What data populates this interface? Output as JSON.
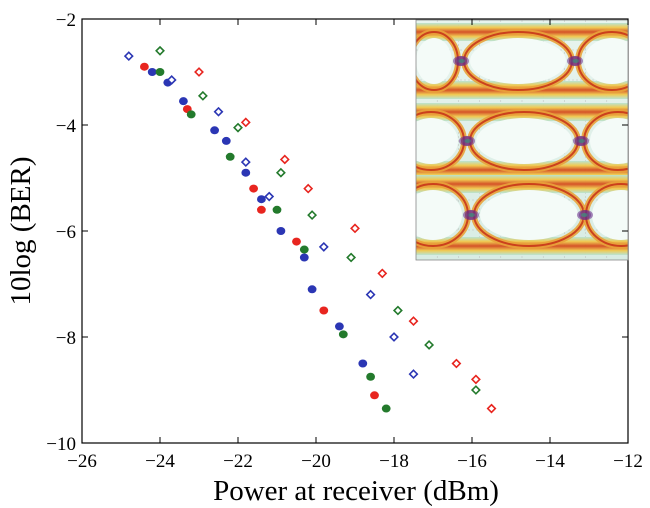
{
  "chart_data": {
    "type": "scatter",
    "xlabel": "Power at receiver (dBm)",
    "ylabel": "10log (BER)",
    "xlim": [
      -26,
      -12
    ],
    "ylim": [
      -10,
      -2
    ],
    "xticks": [
      -26,
      -24,
      -22,
      -20,
      -18,
      -16,
      -14,
      -12
    ],
    "xtick_labels": [
      "−26",
      "−24",
      "−22",
      "−20",
      "−18",
      "−16",
      "−14",
      "−12"
    ],
    "yticks": [
      -10,
      -8,
      -6,
      -4,
      -2
    ],
    "ytick_labels": [
      "−10",
      "−8",
      "−6",
      "−4",
      "−2"
    ],
    "grid": false,
    "inset": "eye diagrams (three stacked)",
    "colors": {
      "red": "#e8251f",
      "blue": "#2b36b4",
      "green": "#237a2c"
    },
    "series": [
      {
        "marker": "filled-circle",
        "color": "#e8251f",
        "points": [
          [
            -24.4,
            -2.9
          ],
          [
            -23.3,
            -3.7
          ],
          [
            -21.6,
            -5.2
          ],
          [
            -21.4,
            -5.6
          ],
          [
            -20.5,
            -6.2
          ],
          [
            -19.8,
            -7.5
          ],
          [
            -18.5,
            -9.1
          ]
        ]
      },
      {
        "marker": "filled-circle",
        "color": "#2b36b4",
        "points": [
          [
            -24.2,
            -3.0
          ],
          [
            -23.8,
            -3.2
          ],
          [
            -23.4,
            -3.55
          ],
          [
            -22.6,
            -4.1
          ],
          [
            -22.3,
            -4.3
          ],
          [
            -21.8,
            -4.9
          ],
          [
            -21.4,
            -5.4
          ],
          [
            -20.9,
            -6.0
          ],
          [
            -20.3,
            -6.5
          ],
          [
            -20.1,
            -7.1
          ],
          [
            -19.4,
            -7.8
          ],
          [
            -18.8,
            -8.5
          ]
        ]
      },
      {
        "marker": "filled-circle",
        "color": "#237a2c",
        "points": [
          [
            -24.0,
            -3.0
          ],
          [
            -23.2,
            -3.8
          ],
          [
            -22.2,
            -4.6
          ],
          [
            -21.0,
            -5.6
          ],
          [
            -20.3,
            -6.35
          ],
          [
            -19.3,
            -7.95
          ],
          [
            -18.6,
            -8.75
          ],
          [
            -18.2,
            -9.35
          ]
        ]
      },
      {
        "marker": "open-diamond",
        "color": "#e8251f",
        "points": [
          [
            -23.0,
            -3.0
          ],
          [
            -21.8,
            -3.95
          ],
          [
            -20.8,
            -4.65
          ],
          [
            -20.2,
            -5.2
          ],
          [
            -19.0,
            -5.95
          ],
          [
            -18.3,
            -6.8
          ],
          [
            -17.5,
            -7.7
          ],
          [
            -16.4,
            -8.5
          ],
          [
            -15.9,
            -8.8
          ],
          [
            -15.5,
            -9.35
          ]
        ]
      },
      {
        "marker": "open-diamond",
        "color": "#2b36b4",
        "points": [
          [
            -24.8,
            -2.7
          ],
          [
            -23.7,
            -3.15
          ],
          [
            -22.5,
            -3.75
          ],
          [
            -21.8,
            -4.7
          ],
          [
            -21.2,
            -5.35
          ],
          [
            -19.8,
            -6.3
          ],
          [
            -18.6,
            -7.2
          ],
          [
            -18.0,
            -8.0
          ],
          [
            -17.5,
            -8.7
          ]
        ]
      },
      {
        "marker": "open-diamond",
        "color": "#237a2c",
        "points": [
          [
            -24.0,
            -2.6
          ],
          [
            -22.9,
            -3.45
          ],
          [
            -22.0,
            -4.05
          ],
          [
            -20.9,
            -4.9
          ],
          [
            -20.1,
            -5.7
          ],
          [
            -19.1,
            -6.5
          ],
          [
            -17.9,
            -7.5
          ],
          [
            -17.1,
            -8.15
          ],
          [
            -15.9,
            -9.0
          ]
        ]
      }
    ]
  }
}
